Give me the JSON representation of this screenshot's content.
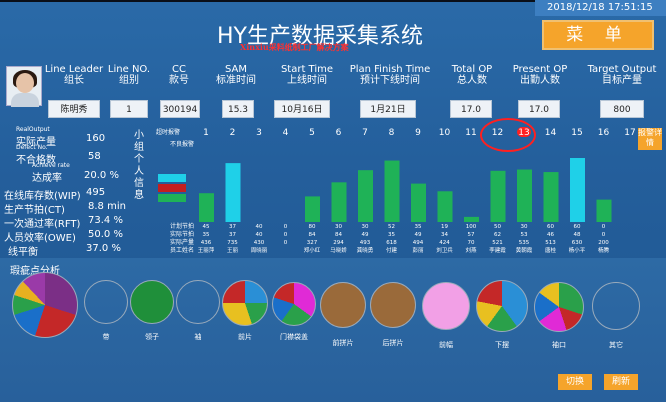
{
  "header": {
    "datetime": "2018/12/18 17:51:15",
    "title": "HY生产数据采集系统",
    "subtitle": "Xinxiu采料纸制工厂解决方案",
    "menu_label": "菜 单"
  },
  "info_columns": [
    {
      "en": "Line Leader",
      "zh": "组长",
      "value": "陈明秀"
    },
    {
      "en": "Line NO.",
      "zh": "组别",
      "value": "1"
    },
    {
      "en": "CC",
      "zh": "款号",
      "value": "300194"
    },
    {
      "en": "SAM",
      "zh": "标准时间",
      "value": "15.3"
    },
    {
      "en": "Start Time",
      "zh": "上线时间",
      "value": "10月16日"
    },
    {
      "en": "Plan Finish Time",
      "zh": "预计下线时间",
      "value": "1月21日"
    },
    {
      "en": "Total OP",
      "zh": "总人数",
      "value": "17.0"
    },
    {
      "en": "Present OP",
      "zh": "出勤人数",
      "value": "17.0"
    },
    {
      "en": "Target Output",
      "zh": "目标产量",
      "value": "800"
    }
  ],
  "stats": [
    {
      "en": "RealOutput",
      "zh": "实际产量",
      "value": "160"
    },
    {
      "en": "Defect No.",
      "zh": "不合格数",
      "value": "58"
    },
    {
      "en": "Achieve rate",
      "zh": "达成率",
      "value": "20.0 %"
    },
    {
      "en": "",
      "zh": "在线库存数(WIP)",
      "value": "495"
    },
    {
      "en": "",
      "zh": "生产节拍(CT)",
      "value": "8.8  min"
    },
    {
      "en": "",
      "zh": "一次通过率(RFT)",
      "value": "73.4 %"
    },
    {
      "en": "",
      "zh": "人员效率(OWE)",
      "value": "50.0 %"
    },
    {
      "en": "",
      "zh": "线平衡",
      "value": "37.0 %"
    }
  ],
  "chart_panel": {
    "vertical_label": "小组个人信息",
    "legend_over": "超时报警",
    "legend_defect": "不良报警",
    "quick_button": "报警详情",
    "row_labels": [
      "计划节拍",
      "实际节拍",
      "实际产量",
      "员工姓名"
    ]
  },
  "chart_data": {
    "type": "bar",
    "categories": [
      "1",
      "2",
      "3",
      "4",
      "5",
      "6",
      "7",
      "8",
      "9",
      "10",
      "11",
      "12",
      "13",
      "14",
      "15",
      "16",
      "17"
    ],
    "series": [
      {
        "name": "",
        "values": [
          45,
          92,
          0,
          0,
          40,
          62,
          81,
          96,
          60,
          48,
          8,
          80,
          82,
          78,
          100,
          35,
          0
        ]
      }
    ],
    "ylim": [
      0,
      100
    ],
    "table_rows": {
      "plan_ct": [
        "45",
        "37",
        "40",
        "0",
        "80",
        "30",
        "30",
        "52",
        "35",
        "19",
        "100",
        "50",
        "30",
        "60",
        "60",
        "0",
        ""
      ],
      "actual_ct": [
        "35",
        "37",
        "40",
        "0",
        "84",
        "84",
        "49",
        "35",
        "49",
        "34",
        "57",
        "62",
        "53",
        "46",
        "48",
        "0",
        ""
      ],
      "actual_output": [
        "436",
        "735",
        "430",
        "0",
        "327",
        "294",
        "493",
        "618",
        "494",
        "424",
        "70",
        "521",
        "535",
        "513",
        "630",
        "200",
        ""
      ],
      "names": [
        "王丽萍",
        "王丽",
        "周晓丽",
        "",
        "郑小红",
        "马晓娇",
        "龚晓勇",
        "付建",
        "彭丽",
        "刘卫兵",
        "刘燕",
        "李建霞",
        "黄朝霞",
        "唐桂",
        "杨小平",
        "杨腾",
        ""
      ]
    },
    "highlight_category": "13"
  },
  "analysis": {
    "title": "瑕疵点分析",
    "pies": [
      {
        "label": ""
      },
      {
        "label": "带"
      },
      {
        "label": "领子"
      },
      {
        "label": "袖"
      },
      {
        "label": "前片"
      },
      {
        "label": "门襟袋盖"
      },
      {
        "label": "前拼片"
      },
      {
        "label": "后拼片"
      },
      {
        "label": "前幅"
      },
      {
        "label": "下摆"
      },
      {
        "label": "袖口"
      },
      {
        "label": "其它"
      }
    ],
    "switch_label": "切换",
    "refresh_label": "刷新"
  },
  "colors": {
    "bar": "#1fb257",
    "bar_highlight": "#1fd0e8",
    "accent": "#f5a42b",
    "alert": "#ff2020"
  }
}
